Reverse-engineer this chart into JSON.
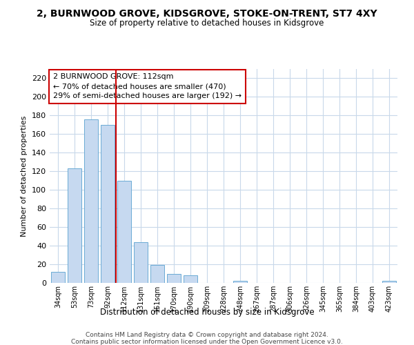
{
  "title": "2, BURNWOOD GROVE, KIDSGROVE, STOKE-ON-TRENT, ST7 4XY",
  "subtitle": "Size of property relative to detached houses in Kidsgrove",
  "xlabel": "Distribution of detached houses by size in Kidsgrove",
  "ylabel": "Number of detached properties",
  "bar_labels": [
    "34sqm",
    "53sqm",
    "73sqm",
    "92sqm",
    "112sqm",
    "131sqm",
    "151sqm",
    "170sqm",
    "190sqm",
    "209sqm",
    "228sqm",
    "248sqm",
    "267sqm",
    "287sqm",
    "306sqm",
    "326sqm",
    "345sqm",
    "365sqm",
    "384sqm",
    "403sqm",
    "423sqm"
  ],
  "bar_values": [
    12,
    123,
    176,
    170,
    110,
    44,
    19,
    10,
    8,
    0,
    0,
    2,
    0,
    0,
    0,
    0,
    0,
    0,
    0,
    0,
    2
  ],
  "bar_color": "#c6d9f0",
  "bar_edge_color": "#6aaad4",
  "ylim": [
    0,
    230
  ],
  "yticks": [
    0,
    20,
    40,
    60,
    80,
    100,
    120,
    140,
    160,
    180,
    200,
    220
  ],
  "vline_color": "#cc0000",
  "annotation_title": "2 BURNWOOD GROVE: 112sqm",
  "annotation_line1": "← 70% of detached houses are smaller (470)",
  "annotation_line2": "29% of semi-detached houses are larger (192) →",
  "annotation_box_color": "#ffffff",
  "annotation_box_edge": "#cc0000",
  "footer_line1": "Contains HM Land Registry data © Crown copyright and database right 2024.",
  "footer_line2": "Contains public sector information licensed under the Open Government Licence v3.0.",
  "bg_color": "#ffffff",
  "grid_color": "#c8d8ea"
}
